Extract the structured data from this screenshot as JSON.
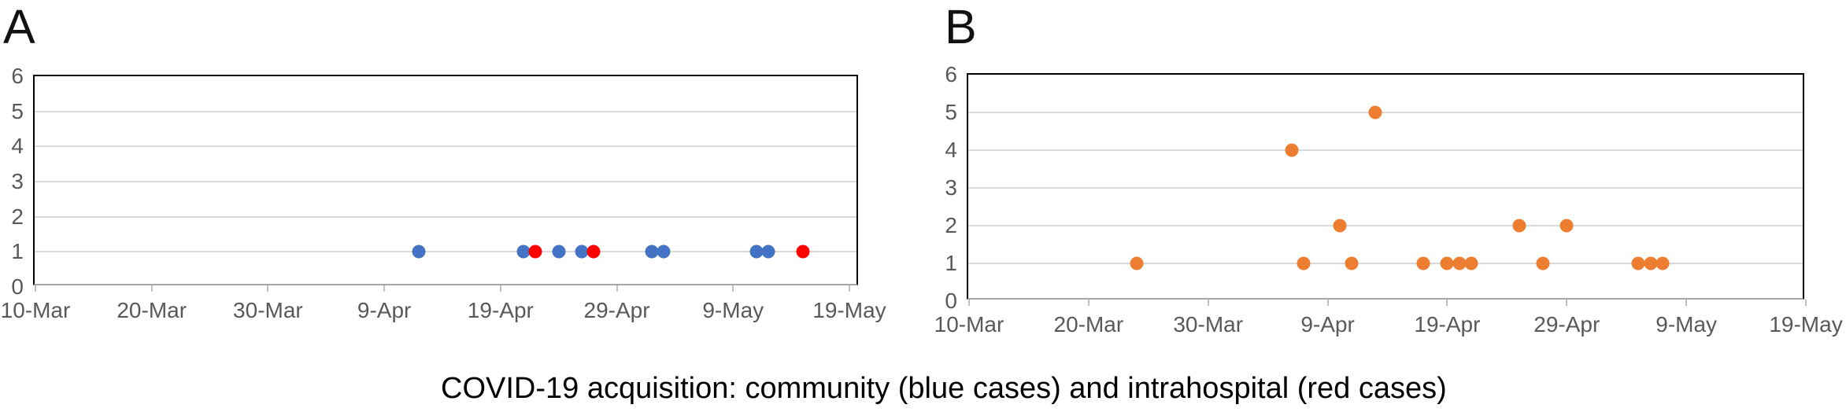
{
  "caption": "COVID-19 acquisition: community (blue cases) and intrahospital (red cases)",
  "chart_data": [
    {
      "panel_label": "A",
      "type": "scatter",
      "title": "",
      "xlabel": "",
      "ylabel": "",
      "grid": "horizontal",
      "legend": "none",
      "x_axis": {
        "tick_labels": [
          "10-Mar",
          "20-Mar",
          "30-Mar",
          "9-Apr",
          "19-Apr",
          "29-Apr",
          "9-May",
          "19-May"
        ],
        "tick_day_offsets": [
          0,
          10,
          20,
          30,
          40,
          50,
          60,
          70
        ],
        "range_days": [
          0,
          71
        ]
      },
      "y_axis": {
        "min": 0,
        "max": 6,
        "tick_labels": [
          "0",
          "1",
          "2",
          "3",
          "4",
          "5",
          "6"
        ]
      },
      "series": [
        {
          "name": "community (blue cases)",
          "color": "#4472C4",
          "points": [
            {
              "date": "12-Apr",
              "value": 1
            },
            {
              "date": "21-Apr",
              "value": 1
            },
            {
              "date": "24-Apr",
              "value": 1
            },
            {
              "date": "26-Apr",
              "value": 1
            },
            {
              "date": "2-May",
              "value": 1
            },
            {
              "date": "3-May",
              "value": 1
            },
            {
              "date": "11-May",
              "value": 1
            },
            {
              "date": "12-May",
              "value": 1
            }
          ]
        },
        {
          "name": "intrahospital (red cases)",
          "color": "#FF0000",
          "points": [
            {
              "date": "22-Apr",
              "value": 1
            },
            {
              "date": "27-Apr",
              "value": 1
            },
            {
              "date": "15-May",
              "value": 1
            }
          ]
        }
      ]
    },
    {
      "panel_label": "B",
      "type": "scatter",
      "title": "",
      "xlabel": "",
      "ylabel": "",
      "grid": "horizontal",
      "legend": "none",
      "x_axis": {
        "tick_labels": [
          "10-Mar",
          "20-Mar",
          "30-Mar",
          "9-Apr",
          "19-Apr",
          "29-Apr",
          "9-May",
          "19-May"
        ],
        "tick_day_offsets": [
          0,
          10,
          20,
          30,
          40,
          50,
          60,
          70
        ],
        "range_days": [
          0,
          70
        ]
      },
      "y_axis": {
        "min": 0,
        "max": 6,
        "tick_labels": [
          "0",
          "1",
          "2",
          "3",
          "4",
          "5",
          "6"
        ]
      },
      "series": [
        {
          "name": "cases",
          "color": "#ED7D31",
          "points": [
            {
              "date": "24-Mar",
              "value": 1
            },
            {
              "date": "6-Apr",
              "value": 4
            },
            {
              "date": "7-Apr",
              "value": 1
            },
            {
              "date": "10-Apr",
              "value": 2
            },
            {
              "date": "11-Apr",
              "value": 1
            },
            {
              "date": "13-Apr",
              "value": 5
            },
            {
              "date": "17-Apr",
              "value": 1
            },
            {
              "date": "19-Apr",
              "value": 1
            },
            {
              "date": "20-Apr",
              "value": 1
            },
            {
              "date": "21-Apr",
              "value": 1
            },
            {
              "date": "25-Apr",
              "value": 2
            },
            {
              "date": "27-Apr",
              "value": 1
            },
            {
              "date": "29-Apr",
              "value": 2
            },
            {
              "date": "5-May",
              "value": 1
            },
            {
              "date": "6-May",
              "value": 1
            },
            {
              "date": "7-May",
              "value": 1
            }
          ]
        }
      ]
    }
  ]
}
